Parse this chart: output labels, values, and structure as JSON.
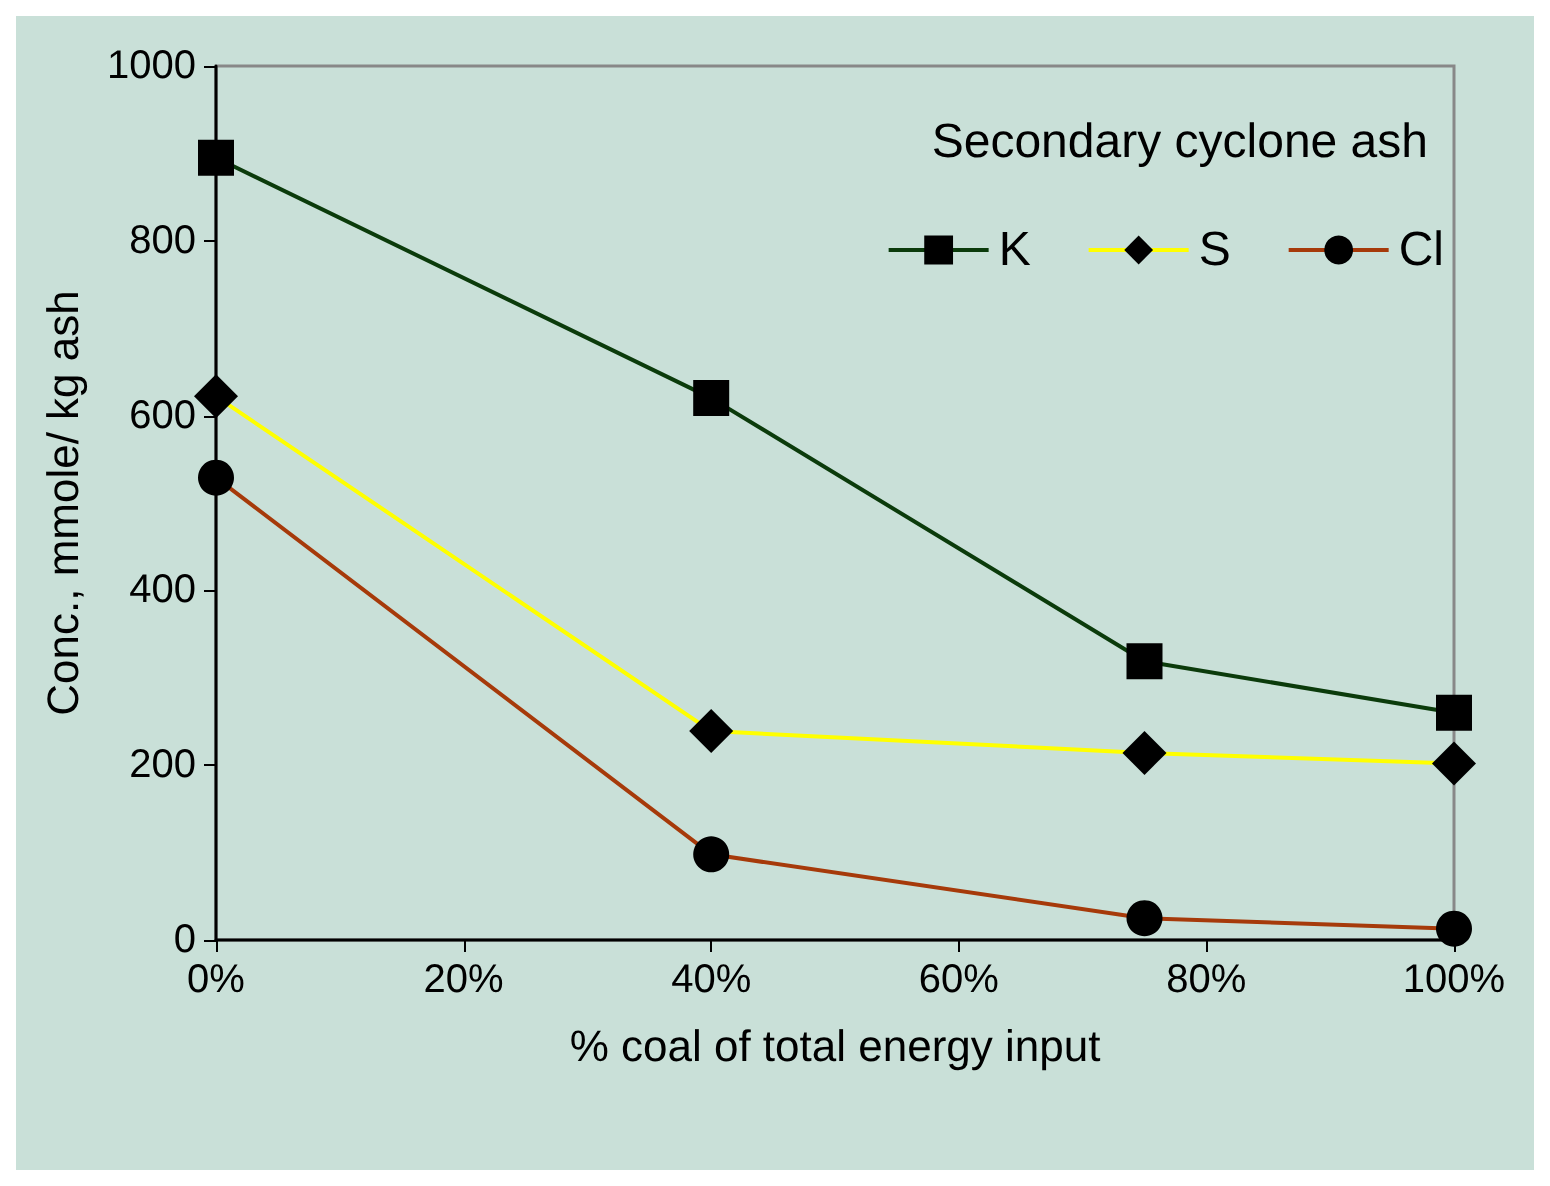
{
  "chart_data": {
    "type": "line",
    "legend_title": "Secondary cyclone ash",
    "xlabel": "% coal of total energy input",
    "ylabel": "Conc., mmole/ kg ash",
    "x": [
      0,
      40,
      75,
      100
    ],
    "series": [
      {
        "name": "K",
        "color": "#0b3b0b",
        "marker": "square",
        "values": [
          895,
          620,
          319,
          260
        ]
      },
      {
        "name": "S",
        "color": "#ffff00",
        "marker": "diamond",
        "values": [
          622,
          239,
          214,
          202
        ]
      },
      {
        "name": "Cl",
        "color": "#a63a0a",
        "marker": "circle",
        "values": [
          529,
          98,
          25,
          13
        ]
      }
    ],
    "xlim": [
      0,
      100
    ],
    "xticks": [
      {
        "value": 0,
        "label": "0%"
      },
      {
        "value": 20,
        "label": "20%"
      },
      {
        "value": 40,
        "label": "40%"
      },
      {
        "value": 60,
        "label": "60%"
      },
      {
        "value": 80,
        "label": "80%"
      },
      {
        "value": 100,
        "label": "100%"
      }
    ],
    "ylim": [
      0,
      1000
    ],
    "yticks": [
      0,
      200,
      400,
      600,
      800,
      1000
    ],
    "grid": false,
    "legend": "top right",
    "line_style": "solid"
  }
}
